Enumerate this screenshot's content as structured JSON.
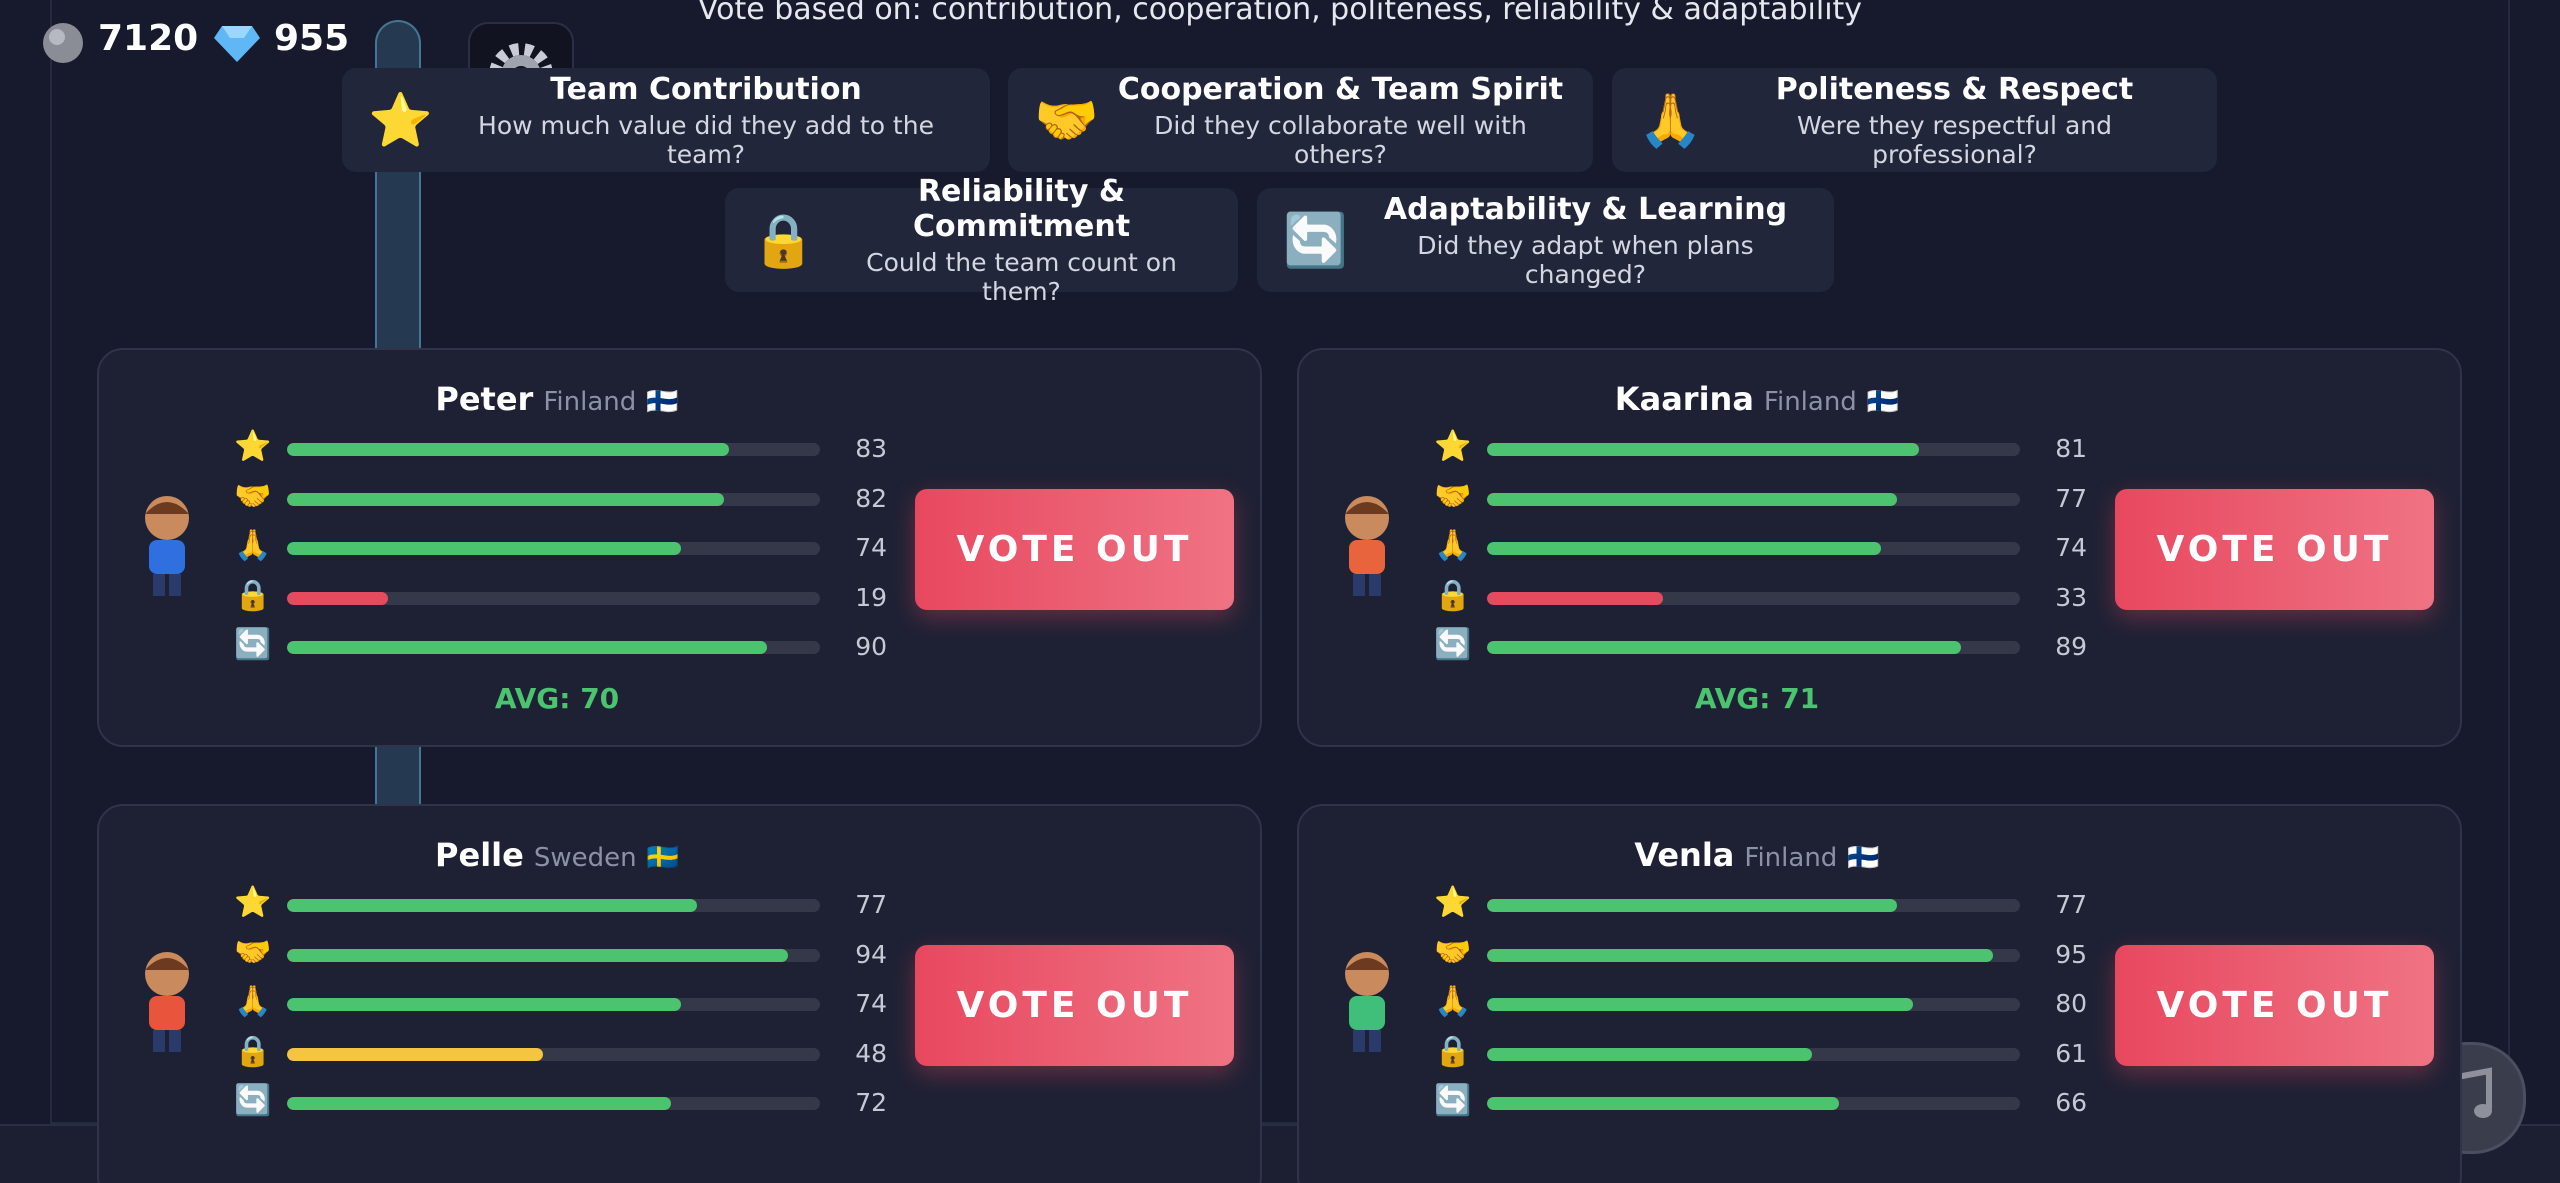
{
  "hint": "Vote based on: contribution, cooperation, politeness, reliability & adaptability",
  "hud": {
    "coins": 7120,
    "gems": 955
  },
  "criteria": [
    {
      "icon": "⭐",
      "title": "Team Contribution",
      "question": "How much value did they add to the team?"
    },
    {
      "icon": "🤝",
      "title": "Cooperation & Team Spirit",
      "question": "Did they collaborate well with others?"
    },
    {
      "icon": "🙏",
      "title": "Politeness & Respect",
      "question": "Were they respectful and professional?"
    },
    {
      "icon": "🔒",
      "title": "Reliability & Commitment",
      "question": "Could the team count on them?"
    },
    {
      "icon": "🔄",
      "title": "Adaptability & Learning",
      "question": "Did they adapt when plans changed?"
    }
  ],
  "vote_button": "VOTE OUT",
  "players": [
    {
      "name": "Peter",
      "country": "Finland",
      "flag": "🇫🇮",
      "avg": "AVG: 70",
      "shirt": "#2f6fe0",
      "stats": [
        {
          "value": 83,
          "color": "#4cc36f"
        },
        {
          "value": 82,
          "color": "#4cc36f"
        },
        {
          "value": 74,
          "color": "#4cc36f"
        },
        {
          "value": 19,
          "color": "#e54b5f"
        },
        {
          "value": 90,
          "color": "#4cc36f"
        }
      ]
    },
    {
      "name": "Kaarina",
      "country": "Finland",
      "flag": "🇫🇮",
      "avg": "AVG: 71",
      "shirt": "#e8643c",
      "stats": [
        {
          "value": 81,
          "color": "#4cc36f"
        },
        {
          "value": 77,
          "color": "#4cc36f"
        },
        {
          "value": 74,
          "color": "#4cc36f"
        },
        {
          "value": 33,
          "color": "#e54b5f"
        },
        {
          "value": 89,
          "color": "#4cc36f"
        }
      ]
    },
    {
      "name": "Pelle",
      "country": "Sweden",
      "flag": "🇸🇪",
      "shirt": "#e8543c",
      "stats": [
        {
          "value": 77,
          "color": "#4cc36f"
        },
        {
          "value": 94,
          "color": "#4cc36f"
        },
        {
          "value": 74,
          "color": "#4cc36f"
        },
        {
          "value": 48,
          "color": "#f5c542"
        },
        {
          "value": 72,
          "color": "#4cc36f"
        }
      ]
    },
    {
      "name": "Venla",
      "country": "Finland",
      "flag": "🇫🇮",
      "shirt": "#3fbf7a",
      "stats": [
        {
          "value": 77,
          "color": "#4cc36f"
        },
        {
          "value": 95,
          "color": "#4cc36f"
        },
        {
          "value": 80,
          "color": "#4cc36f"
        },
        {
          "value": 61,
          "color": "#4cc36f"
        },
        {
          "value": 66,
          "color": "#4cc36f"
        }
      ]
    }
  ]
}
